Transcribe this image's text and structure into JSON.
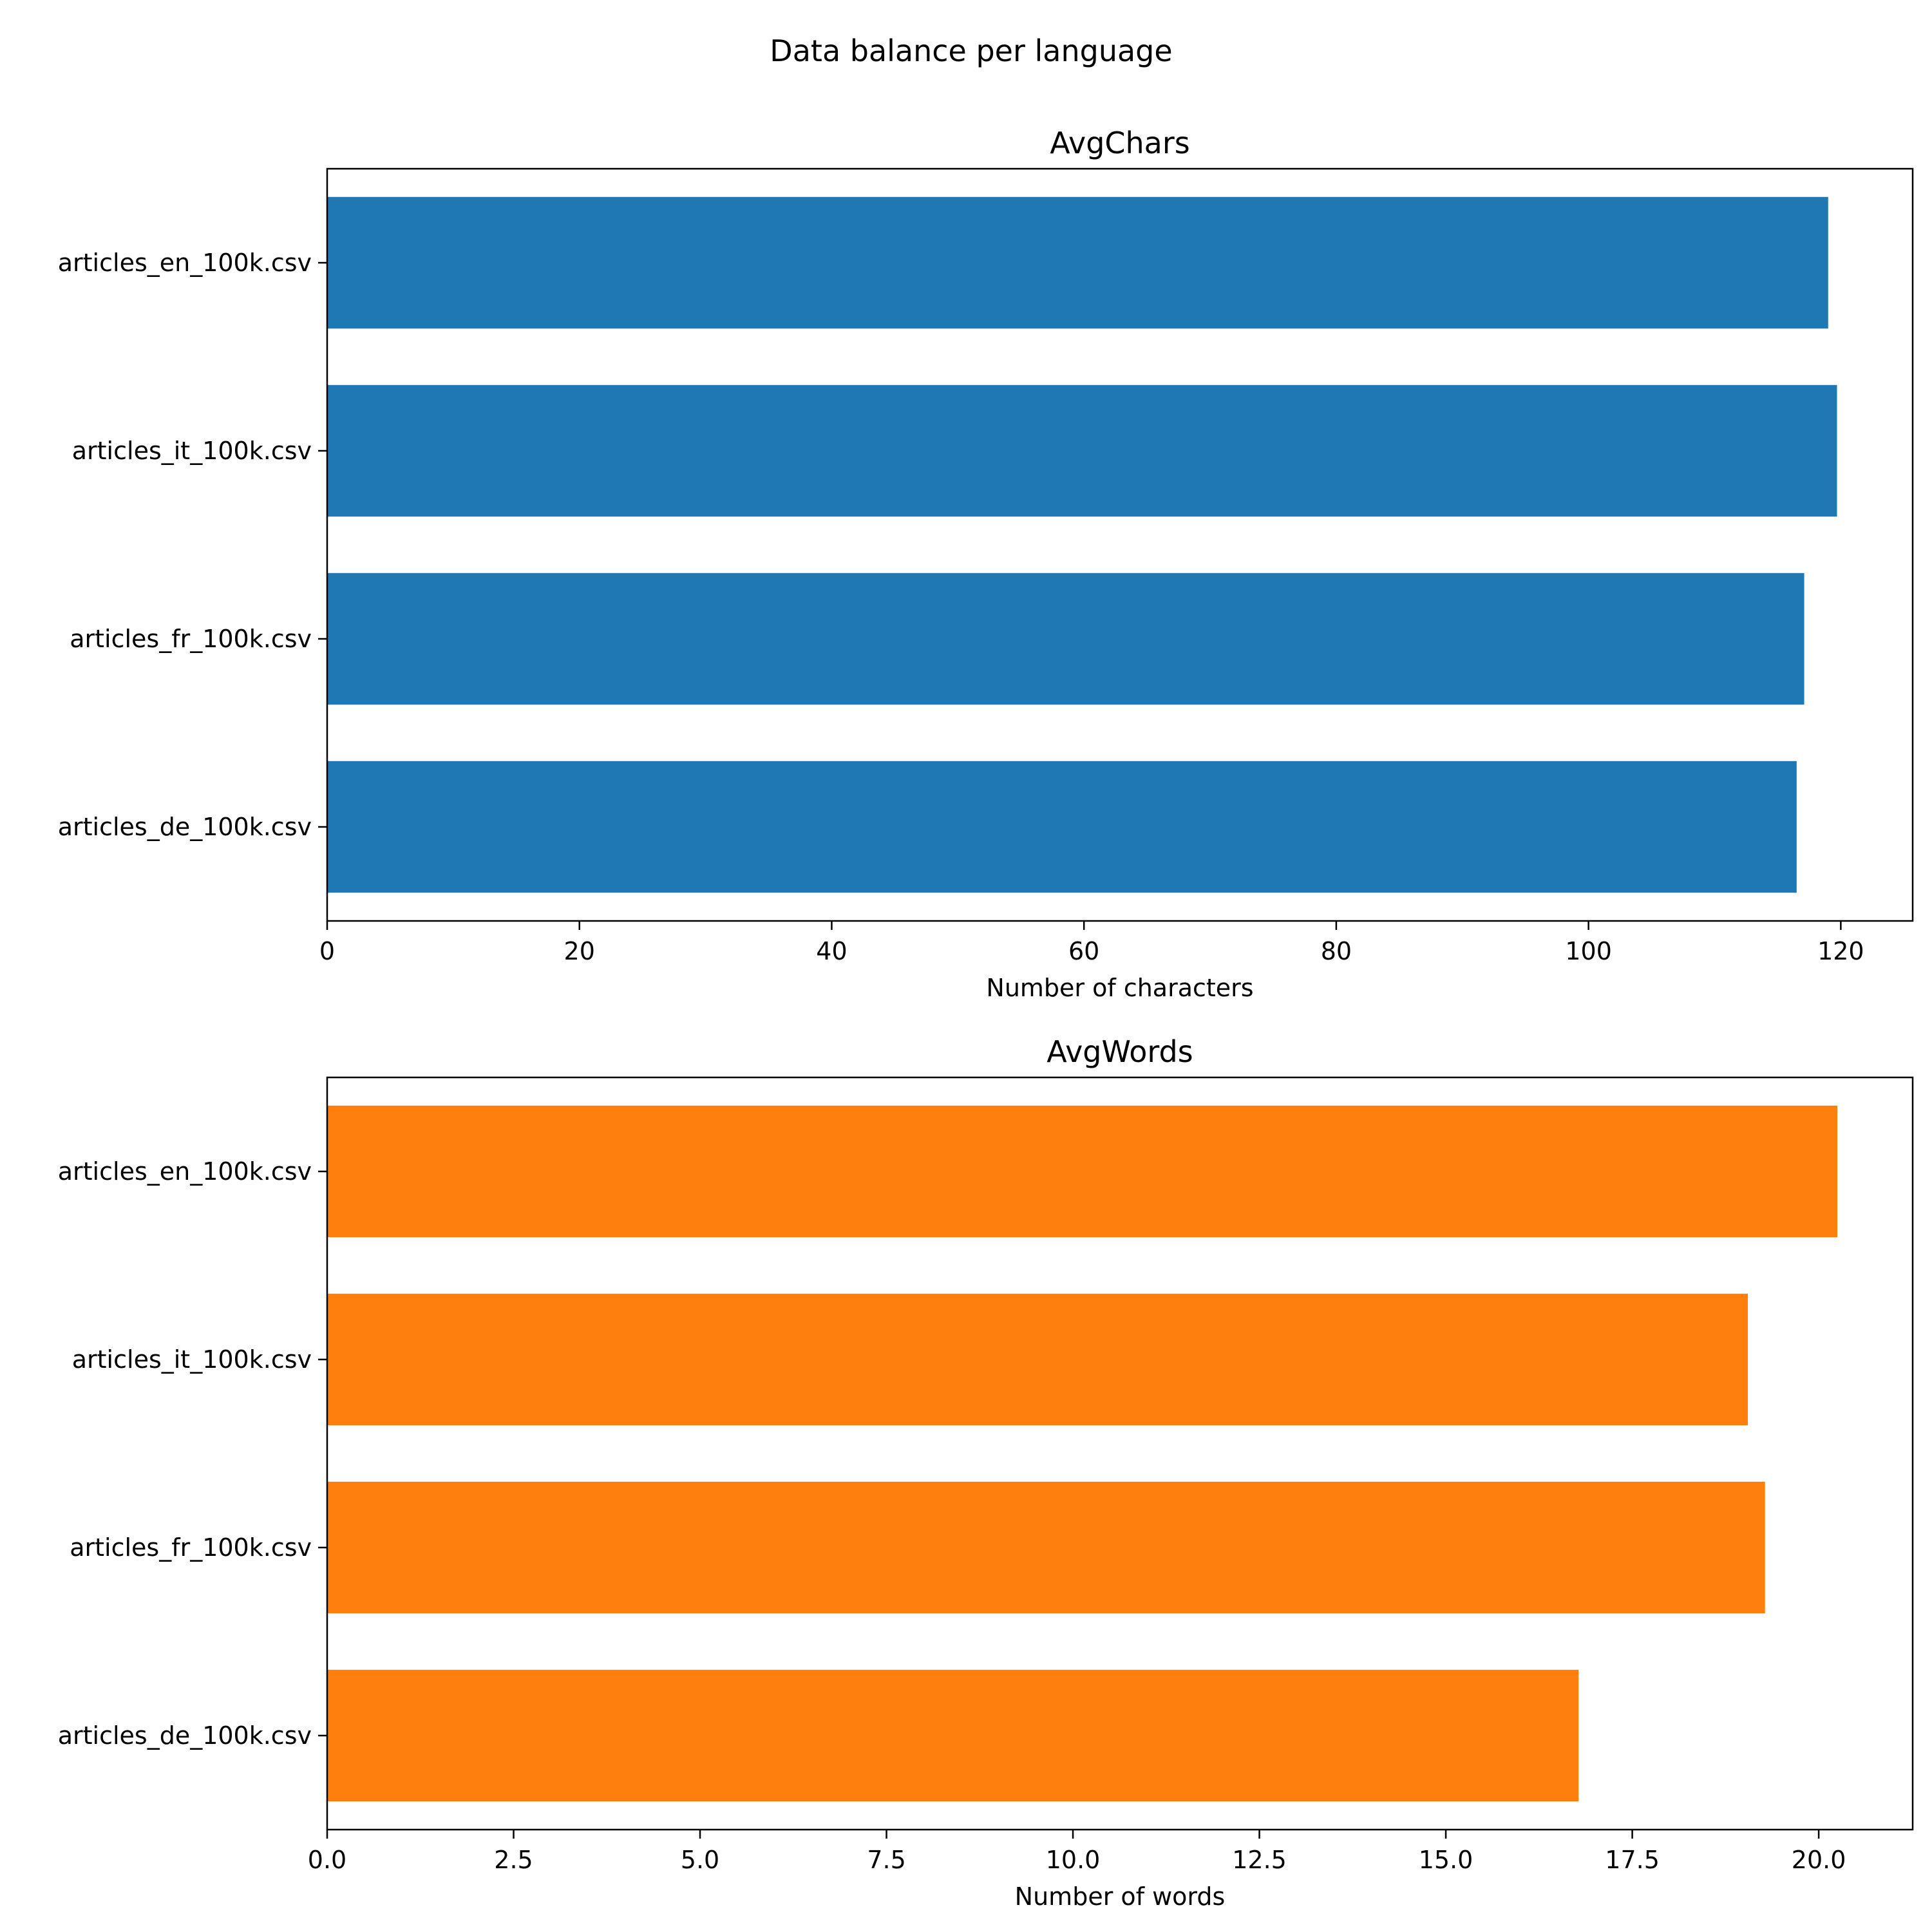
{
  "figure": {
    "suptitle": "Data balance per language"
  },
  "chart_data": [
    {
      "type": "bar",
      "orientation": "horizontal",
      "title": "AvgChars",
      "xlabel": "Number of characters",
      "ylabel": "",
      "categories": [
        "articles_en_100k.csv",
        "articles_it_100k.csv",
        "articles_fr_100k.csv",
        "articles_de_100k.csv"
      ],
      "values": [
        119.0,
        119.7,
        117.1,
        116.5
      ],
      "xlim": [
        0,
        125.7
      ],
      "xticks": [
        0,
        20,
        40,
        60,
        80,
        100,
        120
      ],
      "xtick_labels": [
        "0",
        "20",
        "40",
        "60",
        "80",
        "100",
        "120"
      ],
      "color": "#1f77b4",
      "grid": false
    },
    {
      "type": "bar",
      "orientation": "horizontal",
      "title": "AvgWords",
      "xlabel": "Number of words",
      "ylabel": "",
      "categories": [
        "articles_en_100k.csv",
        "articles_it_100k.csv",
        "articles_fr_100k.csv",
        "articles_de_100k.csv"
      ],
      "values": [
        20.25,
        19.05,
        19.28,
        16.78
      ],
      "xlim": [
        0,
        21.26
      ],
      "xticks": [
        0,
        2.5,
        5,
        7.5,
        10,
        12.5,
        15,
        17.5,
        20
      ],
      "xtick_labels": [
        "0.0",
        "2.5",
        "5.0",
        "7.5",
        "10.0",
        "12.5",
        "15.0",
        "17.5",
        "20.0"
      ],
      "color": "#ff7f0e",
      "grid": false
    }
  ]
}
